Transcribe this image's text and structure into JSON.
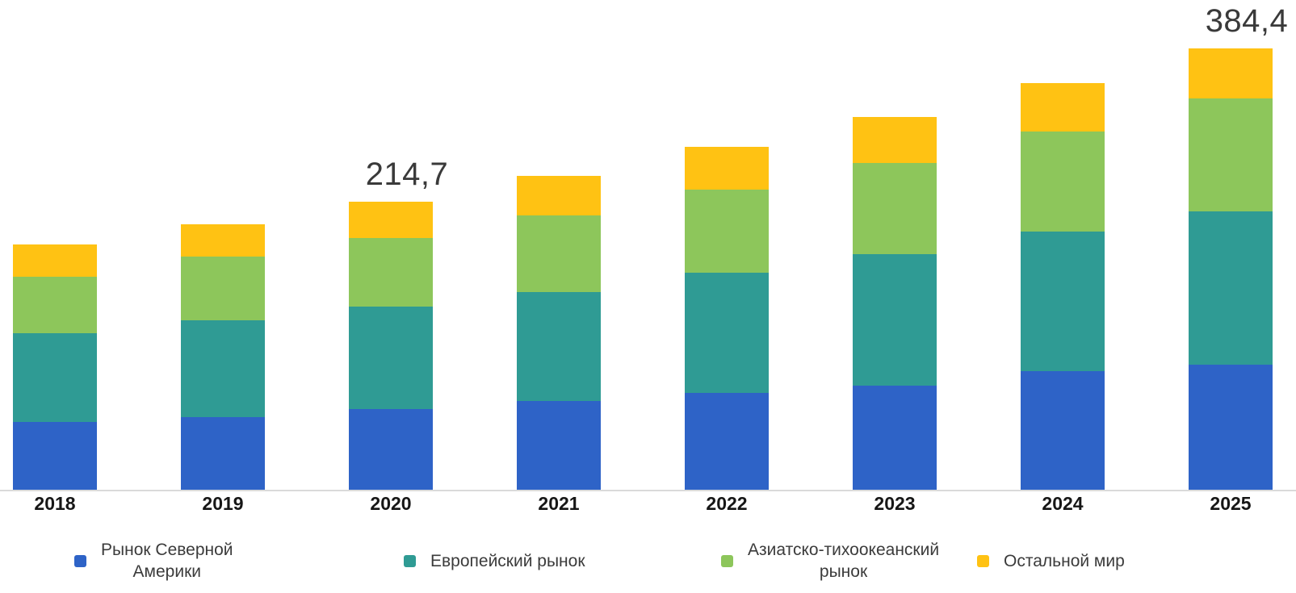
{
  "chart_data": {
    "type": "bar",
    "stacked": true,
    "title": "",
    "xlabel": "",
    "ylabel": "",
    "y_axis_visible": false,
    "grid": false,
    "legend_position": "bottom",
    "categories": [
      "2018",
      "2019",
      "2020",
      "2021",
      "2022",
      "2023",
      "2024",
      "2025"
    ],
    "series": [
      {
        "name": "Рынок Северной Америки",
        "color": "#2E63C7",
        "values": [
          46.7,
          52.3,
          60.6,
          69.2,
          78.2,
          86.6,
          101.4,
          109.5
        ]
      },
      {
        "name": "Европейский рынок",
        "color": "#2F9B94",
        "values": [
          60.4,
          69.0,
          76.2,
          84.2,
          96.3,
          108.6,
          118.5,
          133.3
        ]
      },
      {
        "name": "Азиатско-тихоокеанский рынок",
        "color": "#8DC65B",
        "values": [
          38.4,
          45.4,
          51.0,
          59.3,
          66.6,
          75.3,
          85.0,
          98.2
        ]
      },
      {
        "name": "Остальной мир",
        "color": "#FFC213",
        "values": [
          21.9,
          23.0,
          26.9,
          30.6,
          34.3,
          38.0,
          41.1,
          43.4
        ]
      }
    ],
    "totals": [
      167.4,
      189.7,
      214.7,
      243.3,
      275.4,
      308.5,
      346.0,
      384.4
    ],
    "annotations": [
      {
        "category": "2020",
        "text": "214,7"
      },
      {
        "category": "2025",
        "text": "384,4"
      }
    ]
  },
  "legend": {
    "items": [
      {
        "series_index": 0,
        "label": "Рынок Северной\nАмерики"
      },
      {
        "series_index": 1,
        "label": "Европейский рынок"
      },
      {
        "series_index": 2,
        "label": "Азиатско-тихоокеанский\nрынок"
      },
      {
        "series_index": 3,
        "label": "Остальной мир"
      }
    ]
  },
  "colors": {
    "background": "#FFFFFF",
    "axis_line": "#DADADA",
    "data_label_text": "#3A3A3A",
    "year_label_text": "#161616",
    "legend_text": "#3B3B3B"
  }
}
